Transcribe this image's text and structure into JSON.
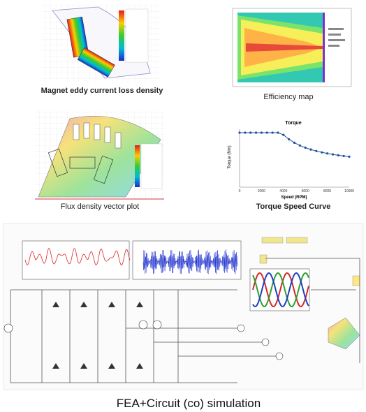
{
  "panels": [
    {
      "caption": "Magnet eddy current loss density"
    },
    {
      "caption": "Efficiency map"
    },
    {
      "caption": "Flux density vector plot"
    },
    {
      "caption": "Torque Speed Curve",
      "title": "Torque",
      "x_label": "Speed (RPM)",
      "y_label": "Torque (Nm)",
      "x_ticks": [
        0,
        2000,
        4000,
        6000,
        8000,
        10000
      ]
    }
  ],
  "footer": {
    "caption": "FEA+Circuit (co) simulation"
  }
}
